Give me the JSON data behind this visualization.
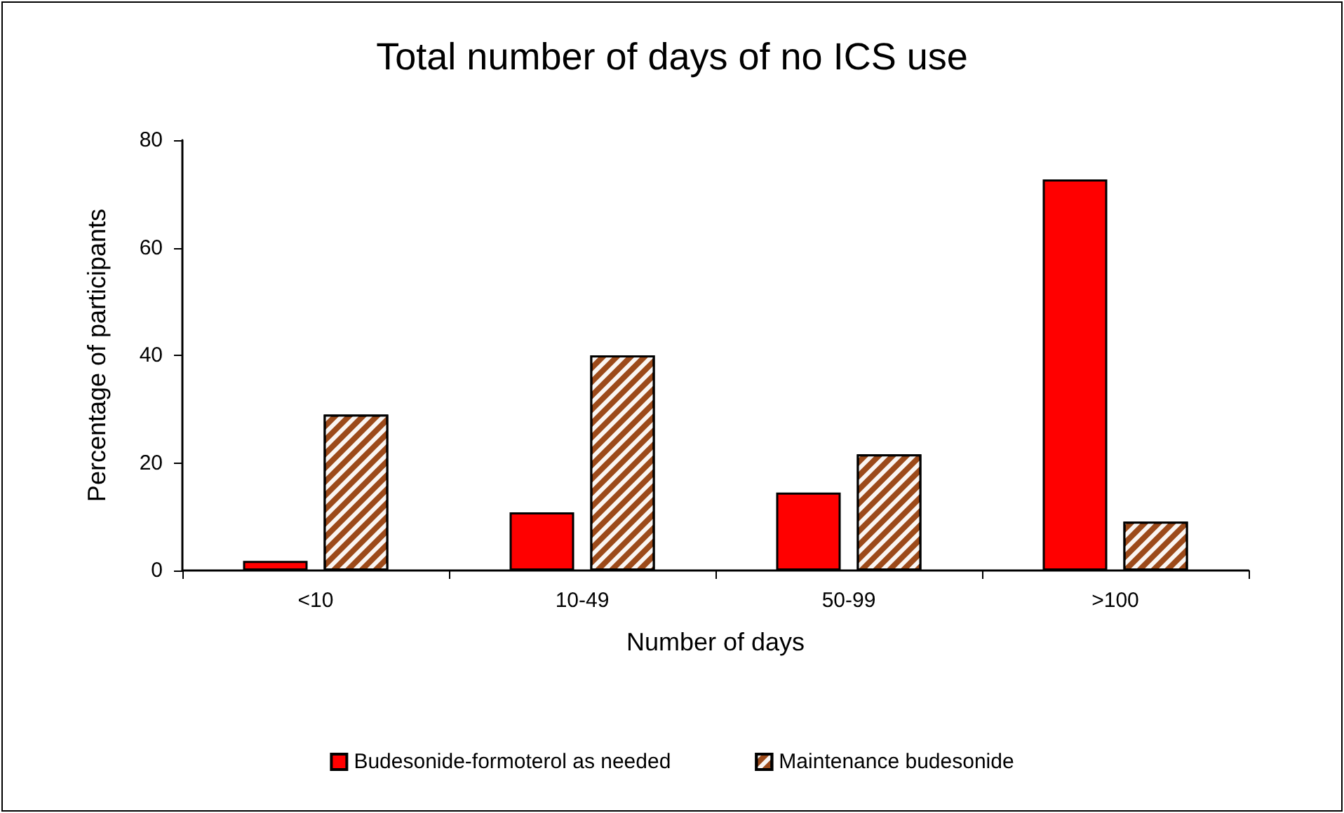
{
  "chart_data": {
    "type": "bar",
    "title": "Total number of days of no ICS use",
    "xlabel": "Number of days",
    "ylabel": "Percentage of participants",
    "categories": [
      "<10",
      "10-49",
      "50-99",
      ">100"
    ],
    "series": [
      {
        "name": "Budesonide-formoterol as needed",
        "color": "#ff0000",
        "values": [
          1.8,
          10.8,
          14.5,
          72.7
        ]
      },
      {
        "name": "Maintenance budesonide",
        "color": "#9c4a1a",
        "values": [
          29,
          40,
          21.6,
          9.1
        ]
      }
    ],
    "ylim": [
      0,
      80
    ],
    "yticks": [
      0,
      20,
      40,
      60,
      80
    ],
    "grid": false,
    "legend": "bottom"
  }
}
